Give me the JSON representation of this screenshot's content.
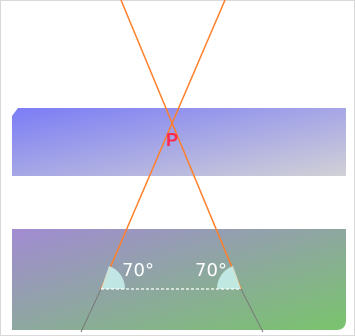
{
  "diagram": {
    "point_label": "P",
    "angle_left": "70°",
    "angle_right": "70°",
    "colors": {
      "upper_band_start": "#7b7cf6",
      "upper_band_end": "#d1d1d6",
      "lower_band_start": "#a28bd3",
      "lower_band_end": "#79c46c",
      "ray": "#ff7f2a",
      "ray_extension": "#7a7a7a",
      "point_label": "#ff2a52",
      "angle_fill": "#c9f2ef",
      "angle_text": "#ffffff",
      "baseline": "#ffffff",
      "frame": "#d9d9d9"
    }
  }
}
